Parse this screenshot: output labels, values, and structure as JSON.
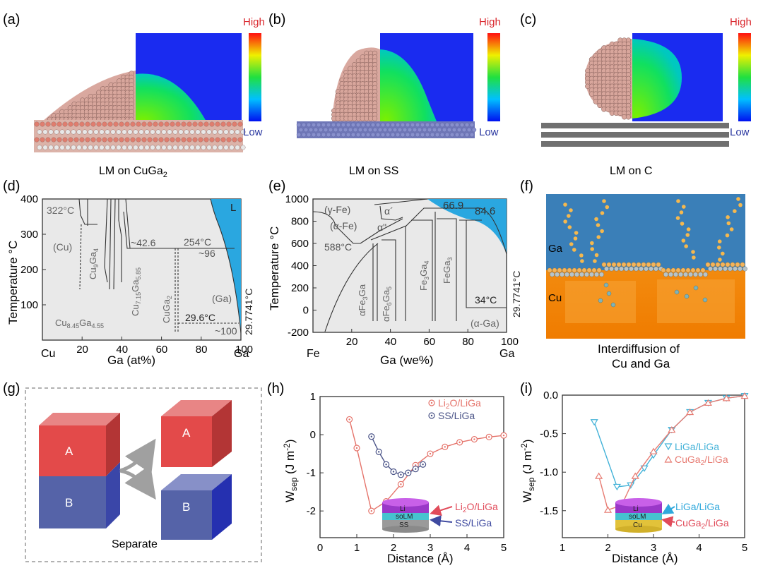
{
  "colors": {
    "md_blue": "#1a2bf0",
    "liquid_blue": "#2aa7e0",
    "diagram_blue": "#3a7fb8",
    "cu_orange": "#f4930e",
    "cube_red": "#e34a4a",
    "cube_blue": "#5563a8",
    "li2o_red": "#e5736a",
    "ss_blue": "#4a5387",
    "liga_cyan": "#43b2d8",
    "cuga2_red": "#e77b72"
  },
  "panels": {
    "a": {
      "label": "(a)",
      "caption": "LM on CuGa",
      "caption_sub": "2",
      "high": "High",
      "low": "Low"
    },
    "b": {
      "label": "(b)",
      "caption": "LM on SS",
      "high": "High",
      "low": "Low"
    },
    "c": {
      "label": "(c)",
      "caption": "LM on C",
      "high": "High",
      "low": "Low"
    },
    "d": {
      "label": "(d)",
      "ylabel": "Temperature °C",
      "xlabel": "Ga (at%)",
      "x_left_element": "Cu",
      "x_right_element": "Ga",
      "xticks": [
        "20",
        "40",
        "60",
        "80",
        "100"
      ],
      "yticks": [
        "100",
        "200",
        "300",
        "400"
      ],
      "phase_L": "L",
      "ann_322": "322°C",
      "ann_cu": "(Cu)",
      "ann_426": "~42.6",
      "ann_254": "254°C",
      "ann_96": "~96",
      "ann_ga": "(Ga)",
      "ann_296": "29.6°C",
      "ann_100": "~100",
      "ann_29774": "29.7741°C",
      "ph_cu9ga4": "Cu",
      "ph_cu9ga4_s1": "9",
      "ph_cu9ga4_g": "Ga",
      "ph_cu9ga4_s2": "4",
      "ph_cu715": "Cu",
      "ph_cu715_s1": "7.15",
      "ph_cu715_g": "Ga",
      "ph_cu715_s2": "5.85",
      "ph_cuga2": "CuGa",
      "ph_cuga2_s": "2",
      "ph_cu845": "Cu",
      "ph_cu845_s1": "8.45",
      "ph_cu845_g": "Ga",
      "ph_cu845_s2": "4.55"
    },
    "e": {
      "label": "(e)",
      "ylabel": "Temperature °C",
      "xlabel": "Ga (we%)",
      "x_left_element": "Fe",
      "x_right_element": "Ga",
      "xticks": [
        "20",
        "40",
        "60",
        "80",
        "100"
      ],
      "yticks": [
        "-200",
        "0",
        "200",
        "400",
        "600",
        "800",
        "1000"
      ],
      "ann_gfe": "(γ-Fe)",
      "ann_afe": "(α-Fe)",
      "ann_588": "588°C",
      "ann_aprime": "α´",
      "ann_adouble": "α\"",
      "ann_669": "66.9",
      "ann_846": "84.6",
      "ann_34": "34°C",
      "ann_aga": "(α-Ga)",
      "ann_29774": "29.7741°C",
      "ph_afe3ga": "αFe",
      "ph_afe3ga_s": "3",
      "ph_afe3ga_g": "Ga",
      "ph_afe6ga5": "αFe",
      "ph_afe6ga5_s1": "6",
      "ph_afe6ga5_g": "Ga",
      "ph_afe6ga5_s2": "5",
      "ph_fe3ga4": "Fe",
      "ph_fe3ga4_s1": "3",
      "ph_fe3ga4_g": "Ga",
      "ph_fe3ga4_s2": "4",
      "ph_fega3": "FeGa",
      "ph_fega3_s": "3"
    },
    "f": {
      "label": "(f)",
      "ga": "Ga",
      "cu": "Cu",
      "caption_line1": "Interdiffusion of",
      "caption_line2": "Cu and Ga"
    },
    "g": {
      "label": "(g)",
      "cube_a": "A",
      "cube_b": "B",
      "caption": "Separate"
    },
    "h": {
      "label": "(h)",
      "ylabel_main": "W",
      "ylabel_sub": "sep",
      "ylabel_unit": " (J m",
      "ylabel_exp": "-2",
      "ylabel_close": ")",
      "inset_li": "Li",
      "inset_solm": "soLM",
      "inset_ss": "SS",
      "inset_arrow1": "Li",
      "inset_arrow1_s": "2",
      "inset_arrow1_t": "O/LiGa",
      "inset_arrow2": "SS/LiGa"
    },
    "i": {
      "label": "(i)",
      "ylabel_main": "W",
      "ylabel_sub": "sep",
      "ylabel_unit": " (J m",
      "ylabel_exp": "-2",
      "ylabel_close": ")",
      "inset_li": "Li",
      "inset_solm": "soLM",
      "inset_cu": "Cu",
      "inset_arrow1": "LiGa/LiGa",
      "inset_arrow2": "CuGa",
      "inset_arrow2_s": "2",
      "inset_arrow2_t": "/LiGa"
    }
  },
  "chart_data": [
    {
      "panel": "h",
      "type": "line",
      "title": "",
      "xlabel": "Distance (Å)",
      "ylabel": "Wsep (J m-2)",
      "xlim": [
        0,
        5
      ],
      "ylim": [
        -2.7,
        1
      ],
      "xticks": [
        0,
        1,
        2,
        3,
        4,
        5
      ],
      "yticks": [
        1,
        0,
        -1,
        -2
      ],
      "legend_position": "top-right",
      "series": [
        {
          "name": "Li2O/LiGa",
          "legend_text": "Li",
          "legend_sub": "2",
          "legend_tail": "O/LiGa",
          "marker": "circle-dot",
          "color": "#e5736a",
          "x": [
            0.8,
            1.0,
            1.4,
            1.8,
            2.2,
            2.6,
            3.0,
            3.4,
            3.8,
            4.2,
            4.6,
            5.0
          ],
          "y": [
            0.4,
            -0.35,
            -2.0,
            -1.75,
            -1.3,
            -0.8,
            -0.5,
            -0.32,
            -0.2,
            -0.12,
            -0.06,
            -0.02
          ]
        },
        {
          "name": "SS/LiGa",
          "legend_text": "SS/LiGa",
          "marker": "circle-dot",
          "color": "#4a5387",
          "x": [
            1.4,
            1.6,
            1.8,
            2.0,
            2.2,
            2.4,
            2.6,
            2.8
          ],
          "y": [
            -0.05,
            -0.45,
            -0.78,
            -0.97,
            -1.05,
            -1.0,
            -0.9,
            -0.78
          ]
        }
      ]
    },
    {
      "panel": "i",
      "type": "line",
      "title": "",
      "xlabel": "Distance (Å)",
      "ylabel": "Wsep (J m-2)",
      "xlim": [
        1,
        5
      ],
      "ylim": [
        -1.85,
        0
      ],
      "xticks": [
        1,
        2,
        3,
        4,
        5
      ],
      "yticks": [
        0.0,
        -0.5,
        -1.0,
        -1.5
      ],
      "legend_position": "center-right",
      "series": [
        {
          "name": "LiGa/LiGa",
          "legend_text": "LiGa/LiGa",
          "marker": "triangle-down",
          "color": "#43b2d8",
          "x": [
            1.7,
            2.2,
            2.5,
            2.8,
            3.0,
            3.4,
            3.8,
            4.2,
            4.6,
            5.0
          ],
          "y": [
            -0.35,
            -1.19,
            -1.17,
            -0.95,
            -0.78,
            -0.45,
            -0.22,
            -0.1,
            -0.04,
            -0.01
          ]
        },
        {
          "name": "CuGa2/LiGa",
          "legend_text": "CuGa",
          "legend_sub": "2",
          "legend_tail": "/LiGa",
          "marker": "triangle-up",
          "color": "#e77b72",
          "x": [
            1.8,
            2.0,
            2.3,
            2.6,
            3.0,
            3.4,
            3.8,
            4.2,
            4.6,
            5.0
          ],
          "y": [
            -1.05,
            -1.49,
            -1.43,
            -1.05,
            -0.73,
            -0.45,
            -0.22,
            -0.1,
            -0.04,
            -0.01
          ]
        }
      ]
    }
  ]
}
